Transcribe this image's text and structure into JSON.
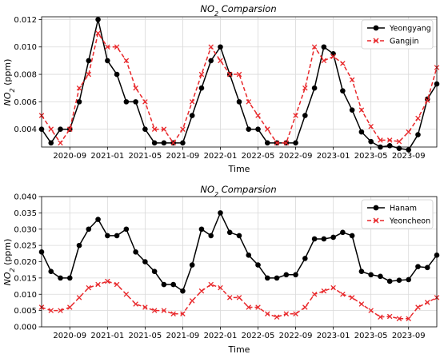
{
  "chart_data": [
    {
      "type": "line",
      "title": "NO2 Comparsion",
      "title_parts": {
        "main": "NO",
        "subscript": "2",
        "suffix": " Comparsion"
      },
      "xlabel": "Time",
      "ylabel": "NO2 (ppm)",
      "ylabel_parts": {
        "main": "NO",
        "subscript": "2",
        "suffix": " (ppm)"
      },
      "x": [
        "2020-06",
        "2020-07",
        "2020-08",
        "2020-09",
        "2020-10",
        "2020-11",
        "2020-12",
        "2021-01",
        "2021-02",
        "2021-03",
        "2021-04",
        "2021-05",
        "2021-06",
        "2021-07",
        "2021-08",
        "2021-09",
        "2021-10",
        "2021-11",
        "2021-12",
        "2022-01",
        "2022-02",
        "2022-03",
        "2022-04",
        "2022-05",
        "2022-06",
        "2022-07",
        "2022-08",
        "2022-09",
        "2022-10",
        "2022-11",
        "2022-12",
        "2023-01",
        "2023-02",
        "2023-03",
        "2023-04",
        "2023-05",
        "2023-06",
        "2023-07",
        "2023-08",
        "2023-09",
        "2023-10",
        "2023-11",
        "2023-12"
      ],
      "xticks": [
        "2020-09",
        "2021-01",
        "2021-05",
        "2021-09",
        "2022-01",
        "2022-05",
        "2022-09",
        "2023-01",
        "2023-05",
        "2023-09"
      ],
      "yticks": [
        "0.004",
        "0.006",
        "0.008",
        "0.010",
        "0.012"
      ],
      "ylim": [
        0.0027,
        0.0122
      ],
      "grid": true,
      "legend_position": "top-right",
      "series": [
        {
          "name": "Yeongyang",
          "color": "#000000",
          "marker": "circle",
          "line_style": "solid",
          "values": [
            0.004,
            0.003,
            0.004,
            0.004,
            0.006,
            0.009,
            0.012,
            0.009,
            0.008,
            0.006,
            0.006,
            0.004,
            0.003,
            0.003,
            0.003,
            0.003,
            0.005,
            0.007,
            0.009,
            0.01,
            0.008,
            0.006,
            0.004,
            0.004,
            0.003,
            0.003,
            0.003,
            0.003,
            0.005,
            0.007,
            0.01,
            0.0095,
            0.0068,
            0.0054,
            0.0038,
            0.0031,
            0.0027,
            0.0028,
            0.0026,
            0.0025,
            0.0036,
            0.0062,
            0.0073
          ]
        },
        {
          "name": "Gangjin",
          "color": "#e8272a",
          "marker": "x",
          "line_style": "dashed",
          "values": [
            0.005,
            0.004,
            0.003,
            0.004,
            0.007,
            0.008,
            0.011,
            0.01,
            0.01,
            0.009,
            0.007,
            0.006,
            0.004,
            0.004,
            0.003,
            0.004,
            0.006,
            0.008,
            0.01,
            0.009,
            0.008,
            0.008,
            0.006,
            0.005,
            0.004,
            0.003,
            0.003,
            0.005,
            0.007,
            0.01,
            0.009,
            0.0093,
            0.0088,
            0.0076,
            0.0054,
            0.0042,
            0.0032,
            0.0032,
            0.0031,
            0.0038,
            0.0048,
            0.0061,
            0.0085
          ]
        }
      ]
    },
    {
      "type": "line",
      "title": "NO2 Comparsion",
      "title_parts": {
        "main": "NO",
        "subscript": "2",
        "suffix": " Comparsion"
      },
      "xlabel": "Time",
      "ylabel": "NO2 (ppm)",
      "ylabel_parts": {
        "main": "NO",
        "subscript": "2",
        "suffix": " (ppm)"
      },
      "x": [
        "2020-06",
        "2020-07",
        "2020-08",
        "2020-09",
        "2020-10",
        "2020-11",
        "2020-12",
        "2021-01",
        "2021-02",
        "2021-03",
        "2021-04",
        "2021-05",
        "2021-06",
        "2021-07",
        "2021-08",
        "2021-09",
        "2021-10",
        "2021-11",
        "2021-12",
        "2022-01",
        "2022-02",
        "2022-03",
        "2022-04",
        "2022-05",
        "2022-06",
        "2022-07",
        "2022-08",
        "2022-09",
        "2022-10",
        "2022-11",
        "2022-12",
        "2023-01",
        "2023-02",
        "2023-03",
        "2023-04",
        "2023-05",
        "2023-06",
        "2023-07",
        "2023-08",
        "2023-09",
        "2023-10",
        "2023-11",
        "2023-12"
      ],
      "xticks": [
        "2020-09",
        "2021-01",
        "2021-05",
        "2021-09",
        "2022-01",
        "2022-05",
        "2022-09",
        "2023-01",
        "2023-05",
        "2023-09"
      ],
      "yticks": [
        "0.000",
        "0.005",
        "0.010",
        "0.015",
        "0.020",
        "0.025",
        "0.030",
        "0.035",
        "0.040"
      ],
      "ylim": [
        0,
        0.04
      ],
      "grid": true,
      "legend_position": "top-right",
      "series": [
        {
          "name": "Hanam",
          "color": "#000000",
          "marker": "circle",
          "line_style": "solid",
          "values": [
            0.023,
            0.017,
            0.015,
            0.015,
            0.025,
            0.03,
            0.033,
            0.028,
            0.028,
            0.03,
            0.023,
            0.02,
            0.017,
            0.013,
            0.013,
            0.011,
            0.019,
            0.03,
            0.028,
            0.035,
            0.029,
            0.028,
            0.022,
            0.019,
            0.015,
            0.015,
            0.016,
            0.016,
            0.021,
            0.027,
            0.027,
            0.0275,
            0.029,
            0.028,
            0.017,
            0.016,
            0.0155,
            0.014,
            0.0143,
            0.0145,
            0.0185,
            0.0182,
            0.022
          ]
        },
        {
          "name": "Yeoncheon",
          "color": "#e8272a",
          "marker": "x",
          "line_style": "dashed",
          "values": [
            0.006,
            0.005,
            0.005,
            0.006,
            0.009,
            0.012,
            0.013,
            0.014,
            0.013,
            0.01,
            0.007,
            0.006,
            0.005,
            0.005,
            0.004,
            0.004,
            0.008,
            0.011,
            0.013,
            0.012,
            0.009,
            0.009,
            0.006,
            0.006,
            0.004,
            0.003,
            0.004,
            0.004,
            0.006,
            0.01,
            0.011,
            0.012,
            0.01,
            0.009,
            0.007,
            0.005,
            0.003,
            0.0032,
            0.0025,
            0.0025,
            0.006,
            0.0075,
            0.009
          ]
        }
      ]
    }
  ]
}
